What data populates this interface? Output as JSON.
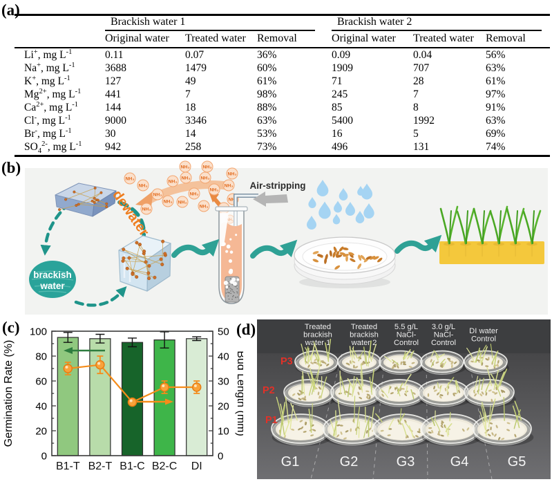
{
  "panels": {
    "a_label": "(a)",
    "b_label": "(b)",
    "c_label": "(c)",
    "d_label": "(d)"
  },
  "table": {
    "group_headers": [
      "Brackish water 1",
      "Brackish water 2"
    ],
    "sub_headers": [
      "Original water",
      "Treated water",
      "Removal"
    ],
    "rows": [
      {
        "label": [
          {
            "t": "Li"
          },
          {
            "t": "+",
            "s": "sup"
          },
          {
            "t": ", mg L"
          },
          {
            "t": "-1",
            "s": "sup"
          }
        ],
        "bw1": [
          "0.11",
          "0.07",
          "36%"
        ],
        "bw2": [
          "0.09",
          "0.04",
          "56%"
        ]
      },
      {
        "label": [
          {
            "t": "Na"
          },
          {
            "t": "+",
            "s": "sup"
          },
          {
            "t": ", mg L"
          },
          {
            "t": "-1",
            "s": "sup"
          }
        ],
        "bw1": [
          "3688",
          "1479",
          "60%"
        ],
        "bw2": [
          "1909",
          "707",
          "63%"
        ]
      },
      {
        "label": [
          {
            "t": "K"
          },
          {
            "t": "+",
            "s": "sup"
          },
          {
            "t": ", mg L"
          },
          {
            "t": "-1",
            "s": "sup"
          }
        ],
        "bw1": [
          "127",
          "49",
          "61%"
        ],
        "bw2": [
          "71",
          "28",
          "61%"
        ]
      },
      {
        "label": [
          {
            "t": "Mg"
          },
          {
            "t": "2+",
            "s": "sup"
          },
          {
            "t": ", mg L"
          },
          {
            "t": "-1",
            "s": "sup"
          }
        ],
        "bw1": [
          "441",
          "7",
          "98%"
        ],
        "bw2": [
          "245",
          "7",
          "97%"
        ]
      },
      {
        "label": [
          {
            "t": "Ca"
          },
          {
            "t": "2+",
            "s": "sup"
          },
          {
            "t": ", mg L"
          },
          {
            "t": "-1",
            "s": "sup"
          }
        ],
        "bw1": [
          "144",
          "18",
          "88%"
        ],
        "bw2": [
          "85",
          "8",
          "91%"
        ]
      },
      {
        "label": [
          {
            "t": "Cl"
          },
          {
            "t": "-",
            "s": "sup"
          },
          {
            "t": ", mg L"
          },
          {
            "t": "-1",
            "s": "sup"
          }
        ],
        "bw1": [
          "9000",
          "3346",
          "63%"
        ],
        "bw2": [
          "5400",
          "1992",
          "63%"
        ]
      },
      {
        "label": [
          {
            "t": "Br"
          },
          {
            "t": "-",
            "s": "sup"
          },
          {
            "t": ", mg L"
          },
          {
            "t": "-1",
            "s": "sup"
          }
        ],
        "bw1": [
          "30",
          "14",
          "53%"
        ],
        "bw2": [
          "16",
          "5",
          "69%"
        ]
      },
      {
        "label": [
          {
            "t": "SO"
          },
          {
            "t": "4",
            "s": "sub"
          },
          {
            "t": "2-",
            "s": "sup"
          },
          {
            "t": ", mg L"
          },
          {
            "t": "-1",
            "s": "sup"
          }
        ],
        "bw1": [
          "942",
          "258",
          "73%"
        ],
        "bw2": [
          "496",
          "131",
          "74%"
        ]
      }
    ]
  },
  "schematic": {
    "brackish_label_line1": "brackish",
    "brackish_label_line2": "water",
    "dewater_label": "dewater",
    "air_stripping_label": "Air-stripping",
    "nh3_label": "NH₃",
    "colors": {
      "teal": "#2fa195",
      "teal_dash": "#1f948a",
      "orange": "#ee7d1f",
      "drop_blue": "#a5d4f3",
      "soil_yellow": "#f4c83c",
      "grass_green": "#4aa823"
    }
  },
  "chart_data": {
    "type": "bar+line",
    "categories": [
      "B1-T",
      "B2-T",
      "B1-C",
      "B2-C",
      "DI"
    ],
    "series": [
      {
        "name": "Germination Rate",
        "type": "bar",
        "axis": "left",
        "values": [
          95,
          94,
          91,
          93,
          94
        ],
        "errors": [
          4,
          3.5,
          3.5,
          6.5,
          1.5
        ],
        "bar_colors": [
          "#90c87f",
          "#b8dcaa",
          "#17642a",
          "#3eb549",
          "#d9ecd5"
        ]
      },
      {
        "name": "Bud Length",
        "type": "line",
        "axis": "right",
        "values": [
          35,
          36.5,
          21.5,
          27.5,
          27.5
        ],
        "errors": [
          2.5,
          3.5,
          1,
          2.5,
          2.5
        ],
        "color": "#f58c1a"
      }
    ],
    "left_axis": {
      "label": "Germination Rate (%)",
      "min": 0,
      "max": 100,
      "major_step": 20,
      "minor_step": 10
    },
    "right_axis": {
      "label": "Bud Length (mm)",
      "min": 0,
      "max": 50,
      "major_step": 10,
      "minor_step": 5
    },
    "grid": false,
    "legend_arrows": {
      "left_series_arrow": "green-left",
      "right_series_arrow": "orange-right"
    }
  },
  "photo": {
    "column_labels": [
      [
        "Treated",
        "brackish",
        "water 1"
      ],
      [
        "Treated",
        "brackish",
        "water 2"
      ],
      [
        "5.5 g/L",
        "NaCl-",
        "Control"
      ],
      [
        "3.0 g/L",
        "NaCl-",
        "Control"
      ],
      [
        "DI water",
        "Control"
      ]
    ],
    "plate_row_labels": [
      "P3",
      "P2",
      "P1"
    ],
    "group_labels": [
      "G1",
      "G2",
      "G3",
      "G4",
      "G5"
    ],
    "row_label_color": "#e23128"
  }
}
